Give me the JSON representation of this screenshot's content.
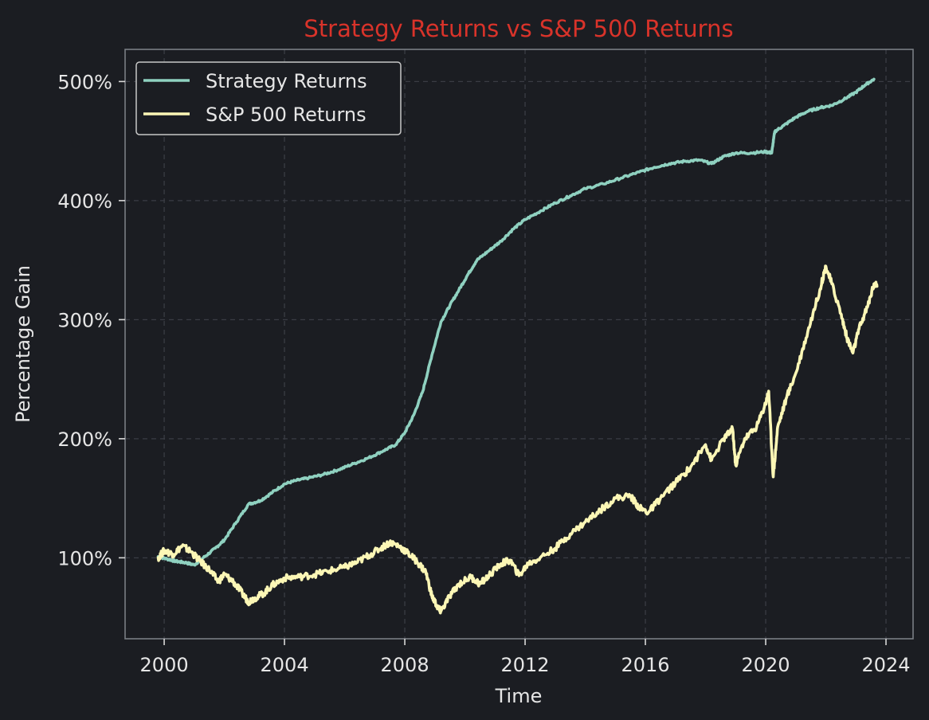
{
  "chart_data": {
    "type": "line",
    "title": "Strategy Returns vs S&P 500 Returns",
    "xlabel": "Time",
    "ylabel": "Percentage Gain",
    "xlim": [
      1998.7,
      2024.9
    ],
    "ylim": [
      32,
      527
    ],
    "x_ticks": [
      2000,
      2004,
      2008,
      2012,
      2016,
      2020,
      2024
    ],
    "x_tick_labels": [
      "2000",
      "2004",
      "2008",
      "2012",
      "2016",
      "2020",
      "2024"
    ],
    "y_ticks": [
      100,
      200,
      300,
      400,
      500
    ],
    "y_tick_labels": [
      "100%",
      "200%",
      "300%",
      "400%",
      "500%"
    ],
    "grid": true,
    "legend_position": "top-left",
    "background": "#1b1d22",
    "title_color": "#d9332a",
    "series": [
      {
        "name": "Strategy Returns",
        "color": "#8fd1c0",
        "points": [
          [
            1999.8,
            101
          ],
          [
            2000.1,
            99
          ],
          [
            2000.4,
            97
          ],
          [
            2000.7,
            96
          ],
          [
            2001.0,
            94
          ],
          [
            2001.3,
            100
          ],
          [
            2001.7,
            108
          ],
          [
            2002.0,
            115
          ],
          [
            2002.4,
            130
          ],
          [
            2002.8,
            145
          ],
          [
            2003.2,
            148
          ],
          [
            2003.6,
            155
          ],
          [
            2004.0,
            162
          ],
          [
            2004.4,
            165
          ],
          [
            2004.8,
            167
          ],
          [
            2005.3,
            170
          ],
          [
            2005.8,
            174
          ],
          [
            2006.3,
            179
          ],
          [
            2006.8,
            184
          ],
          [
            2007.3,
            190
          ],
          [
            2007.7,
            195
          ],
          [
            2008.0,
            205
          ],
          [
            2008.3,
            220
          ],
          [
            2008.6,
            240
          ],
          [
            2008.9,
            270
          ],
          [
            2009.2,
            298
          ],
          [
            2009.5,
            312
          ],
          [
            2009.8,
            325
          ],
          [
            2010.1,
            338
          ],
          [
            2010.4,
            350
          ],
          [
            2010.8,
            358
          ],
          [
            2011.2,
            366
          ],
          [
            2011.6,
            376
          ],
          [
            2012.0,
            384
          ],
          [
            2012.5,
            391
          ],
          [
            2013.0,
            398
          ],
          [
            2013.5,
            404
          ],
          [
            2014.0,
            410
          ],
          [
            2014.6,
            414
          ],
          [
            2015.2,
            419
          ],
          [
            2015.8,
            424
          ],
          [
            2016.3,
            428
          ],
          [
            2016.8,
            431
          ],
          [
            2017.3,
            433
          ],
          [
            2017.8,
            434
          ],
          [
            2018.2,
            431
          ],
          [
            2018.6,
            437
          ],
          [
            2019.0,
            440
          ],
          [
            2019.5,
            440
          ],
          [
            2020.0,
            441
          ],
          [
            2020.2,
            440
          ],
          [
            2020.3,
            458
          ],
          [
            2020.6,
            463
          ],
          [
            2021.0,
            470
          ],
          [
            2021.4,
            475
          ],
          [
            2021.8,
            478
          ],
          [
            2022.2,
            480
          ],
          [
            2022.6,
            485
          ],
          [
            2023.0,
            491
          ],
          [
            2023.3,
            497
          ],
          [
            2023.6,
            502
          ]
        ]
      },
      {
        "name": "S&P 500 Returns",
        "color": "#fcf7b6",
        "points": [
          [
            1999.8,
            100
          ],
          [
            2000.0,
            106
          ],
          [
            2000.3,
            103
          ],
          [
            2000.6,
            110
          ],
          [
            2000.9,
            105
          ],
          [
            2001.2,
            97
          ],
          [
            2001.5,
            90
          ],
          [
            2001.8,
            80
          ],
          [
            2002.0,
            86
          ],
          [
            2002.3,
            80
          ],
          [
            2002.6,
            70
          ],
          [
            2002.8,
            63
          ],
          [
            2003.0,
            66
          ],
          [
            2003.3,
            70
          ],
          [
            2003.6,
            77
          ],
          [
            2004.0,
            83
          ],
          [
            2004.5,
            84
          ],
          [
            2005.0,
            86
          ],
          [
            2005.5,
            89
          ],
          [
            2006.0,
            92
          ],
          [
            2006.4,
            96
          ],
          [
            2006.8,
            102
          ],
          [
            2007.2,
            108
          ],
          [
            2007.5,
            113
          ],
          [
            2007.8,
            110
          ],
          [
            2008.1,
            104
          ],
          [
            2008.4,
            97
          ],
          [
            2008.7,
            88
          ],
          [
            2008.9,
            68
          ],
          [
            2009.1,
            58
          ],
          [
            2009.2,
            55
          ],
          [
            2009.5,
            68
          ],
          [
            2009.8,
            78
          ],
          [
            2010.2,
            84
          ],
          [
            2010.5,
            78
          ],
          [
            2010.8,
            85
          ],
          [
            2011.2,
            95
          ],
          [
            2011.5,
            98
          ],
          [
            2011.8,
            85
          ],
          [
            2012.1,
            95
          ],
          [
            2012.5,
            100
          ],
          [
            2013.0,
            108
          ],
          [
            2013.5,
            120
          ],
          [
            2014.0,
            130
          ],
          [
            2014.5,
            140
          ],
          [
            2015.0,
            150
          ],
          [
            2015.5,
            152
          ],
          [
            2015.8,
            142
          ],
          [
            2016.1,
            138
          ],
          [
            2016.5,
            150
          ],
          [
            2017.0,
            163
          ],
          [
            2017.5,
            176
          ],
          [
            2018.0,
            195
          ],
          [
            2018.2,
            182
          ],
          [
            2018.6,
            200
          ],
          [
            2018.9,
            208
          ],
          [
            2019.0,
            178
          ],
          [
            2019.3,
            200
          ],
          [
            2019.7,
            210
          ],
          [
            2020.0,
            230
          ],
          [
            2020.1,
            240
          ],
          [
            2020.25,
            168
          ],
          [
            2020.4,
            210
          ],
          [
            2020.7,
            235
          ],
          [
            2021.0,
            255
          ],
          [
            2021.4,
            290
          ],
          [
            2021.8,
            325
          ],
          [
            2022.0,
            345
          ],
          [
            2022.2,
            330
          ],
          [
            2022.5,
            305
          ],
          [
            2022.7,
            285
          ],
          [
            2022.9,
            272
          ],
          [
            2023.1,
            292
          ],
          [
            2023.4,
            312
          ],
          [
            2023.6,
            330
          ],
          [
            2023.7,
            328
          ]
        ]
      }
    ]
  }
}
